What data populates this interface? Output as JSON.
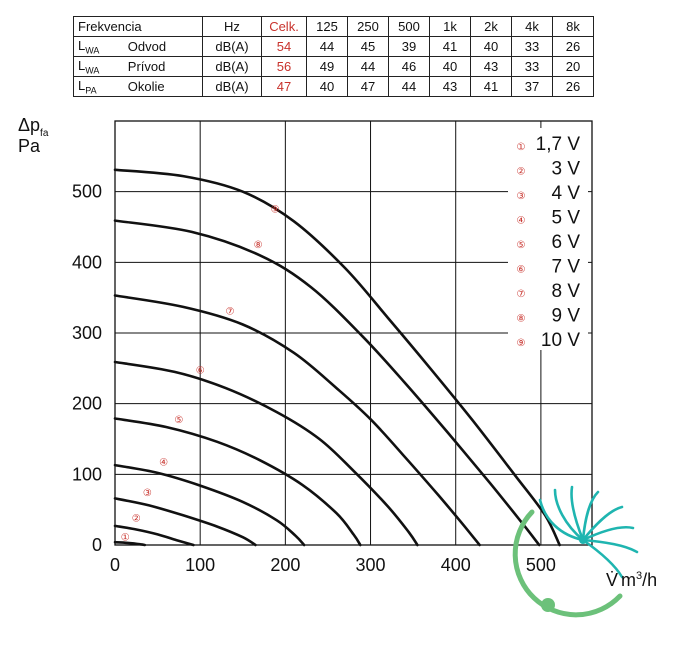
{
  "table": {
    "header": [
      "Frekvencia",
      "Hz",
      "Celk.",
      "125",
      "250",
      "500",
      "1k",
      "2k",
      "4k",
      "8k"
    ],
    "rows": [
      {
        "symbol": "L",
        "sub": "WA",
        "label": "Odvod",
        "unit": "dB(A)",
        "total": "54",
        "values": [
          "44",
          "45",
          "39",
          "41",
          "40",
          "33",
          "26"
        ]
      },
      {
        "symbol": "L",
        "sub": "WA",
        "label": "Prívod",
        "unit": "dB(A)",
        "total": "56",
        "values": [
          "49",
          "44",
          "46",
          "40",
          "43",
          "33",
          "20"
        ]
      },
      {
        "symbol": "L",
        "sub": "PA",
        "label": "Okolie",
        "unit": "dB(A)",
        "total": "47",
        "values": [
          "40",
          "47",
          "44",
          "43",
          "41",
          "37",
          "26"
        ]
      }
    ]
  },
  "chart_data": {
    "type": "line",
    "ylabel_symbol": "Δp",
    "ylabel_sub": "fa",
    "ylabel_unit": "Pa",
    "xlabel_symbol": "V̇",
    "xlabel_unit": "m",
    "xlabel_sup": "3",
    "xlabel_tail": "/h",
    "xlim": [
      0,
      560
    ],
    "ylim": [
      0,
      600
    ],
    "xticks": [
      "0",
      "100",
      "200",
      "300",
      "400",
      "500"
    ],
    "yticks": [
      "0",
      "100",
      "200",
      "300",
      "400",
      "500"
    ],
    "grid": true,
    "legend_position": "top-right",
    "series": [
      {
        "marker": "①",
        "name": "1,7 V",
        "points": [
          [
            0,
            4
          ],
          [
            15,
            3
          ],
          [
            30,
            1
          ],
          [
            35,
            0
          ]
        ]
      },
      {
        "marker": "②",
        "name": "3 V",
        "points": [
          [
            0,
            27
          ],
          [
            25,
            22
          ],
          [
            50,
            15
          ],
          [
            72,
            7
          ],
          [
            92,
            0
          ]
        ]
      },
      {
        "marker": "③",
        "name": "4 V",
        "points": [
          [
            0,
            66
          ],
          [
            40,
            56
          ],
          [
            80,
            42
          ],
          [
            120,
            26
          ],
          [
            150,
            11
          ],
          [
            165,
            0
          ]
        ]
      },
      {
        "marker": "④",
        "name": "5 V",
        "points": [
          [
            0,
            113
          ],
          [
            50,
            102
          ],
          [
            100,
            84
          ],
          [
            150,
            61
          ],
          [
            190,
            35
          ],
          [
            212,
            13
          ],
          [
            222,
            0
          ]
        ]
      },
      {
        "marker": "⑤",
        "name": "6 V",
        "points": [
          [
            0,
            179
          ],
          [
            60,
            167
          ],
          [
            120,
            146
          ],
          [
            170,
            120
          ],
          [
            220,
            85
          ],
          [
            260,
            45
          ],
          [
            280,
            15
          ],
          [
            288,
            0
          ]
        ]
      },
      {
        "marker": "⑥",
        "name": "7 V",
        "points": [
          [
            0,
            259
          ],
          [
            70,
            245
          ],
          [
            130,
            222
          ],
          [
            190,
            188
          ],
          [
            240,
            150
          ],
          [
            280,
            105
          ],
          [
            320,
            55
          ],
          [
            345,
            18
          ],
          [
            355,
            0
          ]
        ]
      },
      {
        "marker": "⑦",
        "name": "8 V",
        "points": [
          [
            0,
            353
          ],
          [
            80,
            337
          ],
          [
            150,
            312
          ],
          [
            210,
            272
          ],
          [
            260,
            222
          ],
          [
            300,
            178
          ],
          [
            340,
            125
          ],
          [
            380,
            70
          ],
          [
            410,
            27
          ],
          [
            428,
            0
          ]
        ]
      },
      {
        "marker": "⑧",
        "name": "9 V",
        "points": [
          [
            0,
            459
          ],
          [
            90,
            443
          ],
          [
            170,
            410
          ],
          [
            230,
            365
          ],
          [
            290,
            296
          ],
          [
            340,
            230
          ],
          [
            390,
            160
          ],
          [
            440,
            88
          ],
          [
            480,
            28
          ],
          [
            498,
            0
          ]
        ]
      },
      {
        "marker": "⑨",
        "name": "10 V",
        "points": [
          [
            0,
            531
          ],
          [
            80,
            522
          ],
          [
            150,
            500
          ],
          [
            210,
            458
          ],
          [
            270,
            392
          ],
          [
            320,
            322
          ],
          [
            370,
            250
          ],
          [
            420,
            176
          ],
          [
            470,
            98
          ],
          [
            505,
            42
          ],
          [
            522,
            0
          ]
        ]
      }
    ],
    "marker_positions": [
      [
        12,
        12
      ],
      [
        25,
        39
      ],
      [
        38,
        75
      ],
      [
        57,
        118
      ],
      [
        75,
        178
      ],
      [
        100,
        248
      ],
      [
        135,
        332
      ],
      [
        168,
        426
      ],
      [
        188,
        476
      ]
    ],
    "colors": {
      "line": "#111111",
      "grid": "#111111",
      "marker": "#c8322c",
      "logo_teal": "#1fb5b0",
      "logo_green": "#6cc17a"
    }
  }
}
